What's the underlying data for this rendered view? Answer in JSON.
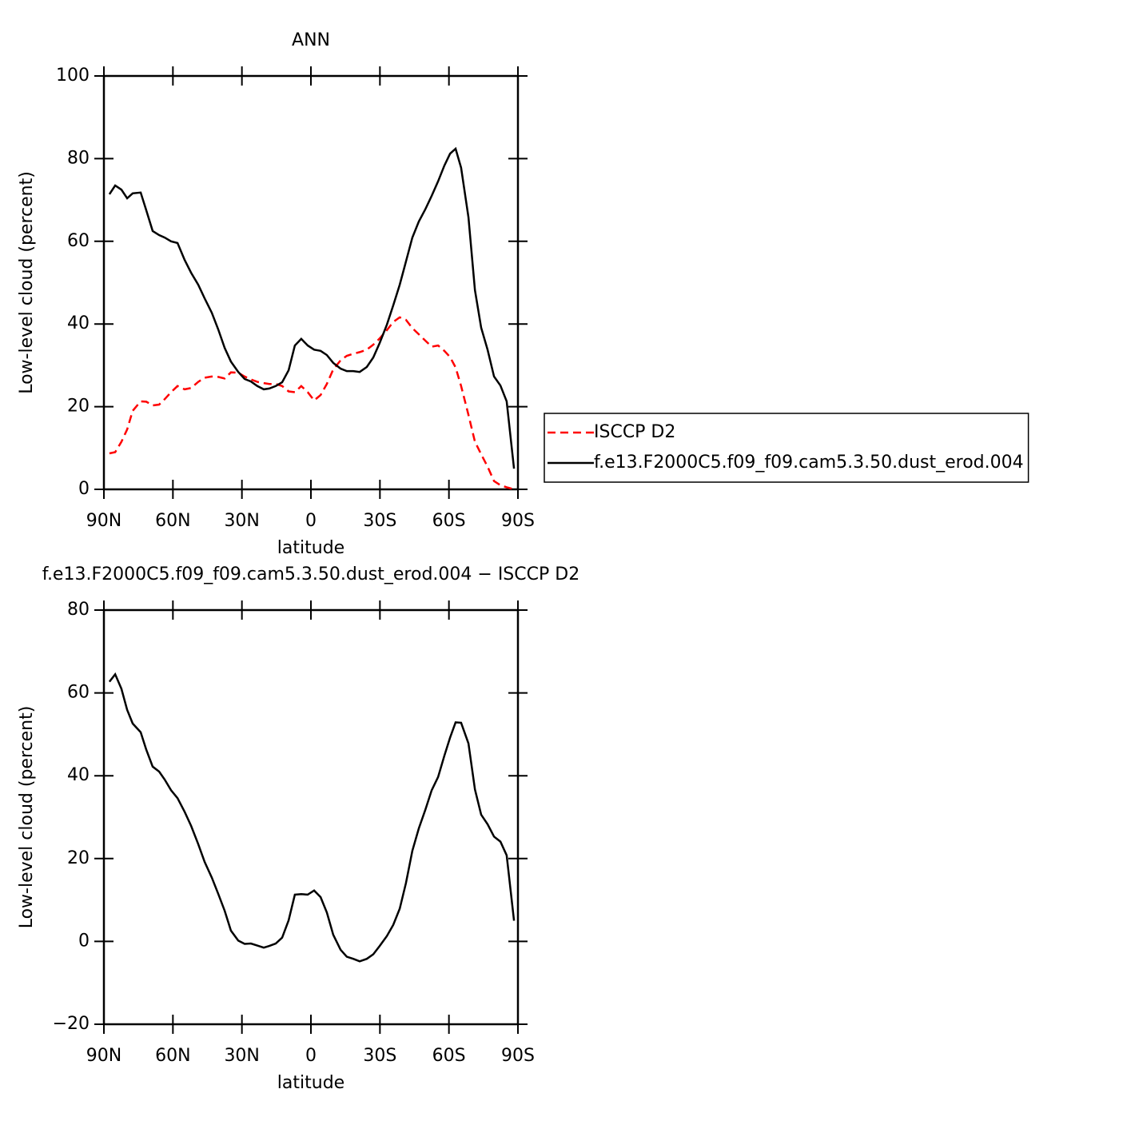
{
  "chart_data": [
    {
      "type": "line",
      "title": "ANN",
      "xlabel": "latitude",
      "ylabel": "Low-level cloud (percent)",
      "x": [
        87.6,
        85.1,
        82.4,
        79.9,
        77.5,
        74.0,
        71.6,
        68.8,
        66.0,
        63.6,
        60.8,
        58.0,
        54.9,
        52.1,
        49.0,
        46.2,
        43.1,
        40.3,
        37.5,
        34.8,
        31.6,
        28.8,
        26.1,
        23.3,
        20.5,
        18.1,
        15.3,
        12.5,
        9.7,
        7.0,
        4.2,
        1.4,
        -1.4,
        -4.2,
        -6.9,
        -9.7,
        -12.9,
        -15.6,
        -18.4,
        -21.2,
        -24.3,
        -27.1,
        -29.9,
        -33.0,
        -35.8,
        -38.6,
        -41.3,
        -44.1,
        -46.9,
        -49.7,
        -52.5,
        -55.3,
        -58.0,
        -60.5,
        -62.9,
        -65.3,
        -68.5,
        -71.3,
        -74.0,
        -76.8,
        -79.6,
        -82.4,
        -85.1,
        -88.3
      ],
      "series": [
        {
          "name": "ISCCP D2",
          "color": "#ff0000",
          "dashed": true,
          "values": [
            8.7,
            9.0,
            11.5,
            14.5,
            19.0,
            21.3,
            21.2,
            20.3,
            20.5,
            21.8,
            23.5,
            25.0,
            24.2,
            24.5,
            26.0,
            27.0,
            27.3,
            27.2,
            26.8,
            28.3,
            28.2,
            27.3,
            26.6,
            26.0,
            25.7,
            25.5,
            25.5,
            25.0,
            23.7,
            23.5,
            25.0,
            23.5,
            21.5,
            22.8,
            25.5,
            29.0,
            31.2,
            32.3,
            32.8,
            33.2,
            33.8,
            35.0,
            36.5,
            38.5,
            40.5,
            41.6,
            41.0,
            39.0,
            37.5,
            36.0,
            34.5,
            34.8,
            33.5,
            32.0,
            29.5,
            25.0,
            18.0,
            11.5,
            8.5,
            5.5,
            2.0,
            1.0,
            0.5,
            0.0
          ]
        },
        {
          "name": "f.e13.F2000C5.f09_f09.cam5.3.50.dust_erod.004",
          "color": "#000000",
          "dashed": false,
          "values": [
            71.4,
            73.5,
            72.5,
            70.4,
            71.6,
            71.8,
            67.5,
            62.5,
            61.5,
            60.9,
            60.0,
            59.6,
            55.5,
            52.4,
            49.5,
            46.2,
            42.7,
            38.7,
            34.2,
            30.9,
            28.4,
            26.7,
            26.1,
            25.0,
            24.2,
            24.4,
            25.0,
            25.9,
            28.8,
            34.8,
            36.4,
            34.8,
            33.8,
            33.5,
            32.5,
            30.6,
            29.2,
            28.6,
            28.6,
            28.4,
            29.6,
            31.9,
            35.4,
            39.8,
            44.5,
            49.5,
            55.1,
            60.9,
            64.8,
            67.7,
            71.0,
            74.5,
            78.3,
            81.2,
            82.4,
            77.8,
            65.8,
            48.2,
            39.1,
            33.8,
            27.3,
            25.1,
            21.3,
            5.0
          ]
        }
      ],
      "xlim": [
        90,
        -90
      ],
      "xticks": [
        {
          "value": 90,
          "label": "90N"
        },
        {
          "value": 60,
          "label": "60N"
        },
        {
          "value": 30,
          "label": "30N"
        },
        0,
        {
          "value": -30,
          "label": "30S"
        },
        {
          "value": -60,
          "label": "60S"
        },
        {
          "value": -90,
          "label": "90S"
        }
      ],
      "ylim": [
        0,
        100
      ],
      "yticks": [
        0,
        20,
        40,
        60,
        80,
        100
      ],
      "legend": "right"
    },
    {
      "type": "line",
      "title": "f.e13.F2000C5.f09_f09.cam5.3.50.dust_erod.004 − ISCCP D2",
      "xlabel": "latitude",
      "ylabel": "Low-level cloud (percent)",
      "x": [
        87.6,
        85.1,
        82.4,
        79.9,
        77.5,
        74.0,
        71.6,
        68.8,
        66.0,
        63.6,
        60.8,
        58.0,
        54.9,
        52.1,
        49.0,
        46.2,
        43.1,
        40.3,
        37.5,
        34.8,
        31.6,
        28.8,
        26.1,
        23.3,
        20.5,
        18.1,
        15.3,
        12.5,
        9.7,
        7.0,
        4.2,
        1.4,
        -1.4,
        -4.2,
        -6.9,
        -9.7,
        -12.9,
        -15.6,
        -18.4,
        -21.2,
        -24.3,
        -27.1,
        -29.9,
        -33.0,
        -35.8,
        -38.6,
        -41.3,
        -44.1,
        -46.9,
        -49.7,
        -52.5,
        -55.3,
        -58.0,
        -60.5,
        -62.9,
        -65.3,
        -68.5,
        -71.3,
        -74.0,
        -76.8,
        -79.6,
        -82.4,
        -85.1,
        -88.3
      ],
      "values": [
        62.7,
        64.5,
        61.0,
        55.9,
        52.6,
        50.5,
        46.3,
        42.2,
        41.0,
        39.1,
        36.5,
        34.6,
        31.3,
        27.9,
        23.5,
        19.2,
        15.4,
        11.5,
        7.4,
        2.6,
        0.2,
        -0.6,
        -0.5,
        -1.0,
        -1.5,
        -1.1,
        -0.5,
        0.9,
        5.1,
        11.3,
        11.4,
        11.3,
        12.3,
        10.7,
        7.0,
        1.6,
        -2.0,
        -3.7,
        -4.2,
        -4.8,
        -4.2,
        -3.1,
        -1.1,
        1.3,
        4.0,
        7.9,
        14.1,
        21.9,
        27.3,
        31.7,
        36.5,
        39.7,
        44.8,
        49.2,
        52.9,
        52.8,
        47.8,
        36.7,
        30.6,
        28.3,
        25.3,
        24.1,
        20.8,
        5.0
      ],
      "color": "#000000",
      "xlim": [
        90,
        -90
      ],
      "xticks": [
        {
          "value": 90,
          "label": "90N"
        },
        {
          "value": 60,
          "label": "60N"
        },
        {
          "value": 30,
          "label": "30N"
        },
        0,
        {
          "value": -30,
          "label": "30S"
        },
        {
          "value": -60,
          "label": "60S"
        },
        {
          "value": -90,
          "label": "90S"
        }
      ],
      "ylim": [
        -20,
        80
      ],
      "yticks": [
        {
          "value": -20,
          "label": "−20"
        },
        0,
        20,
        40,
        60,
        80
      ]
    }
  ]
}
